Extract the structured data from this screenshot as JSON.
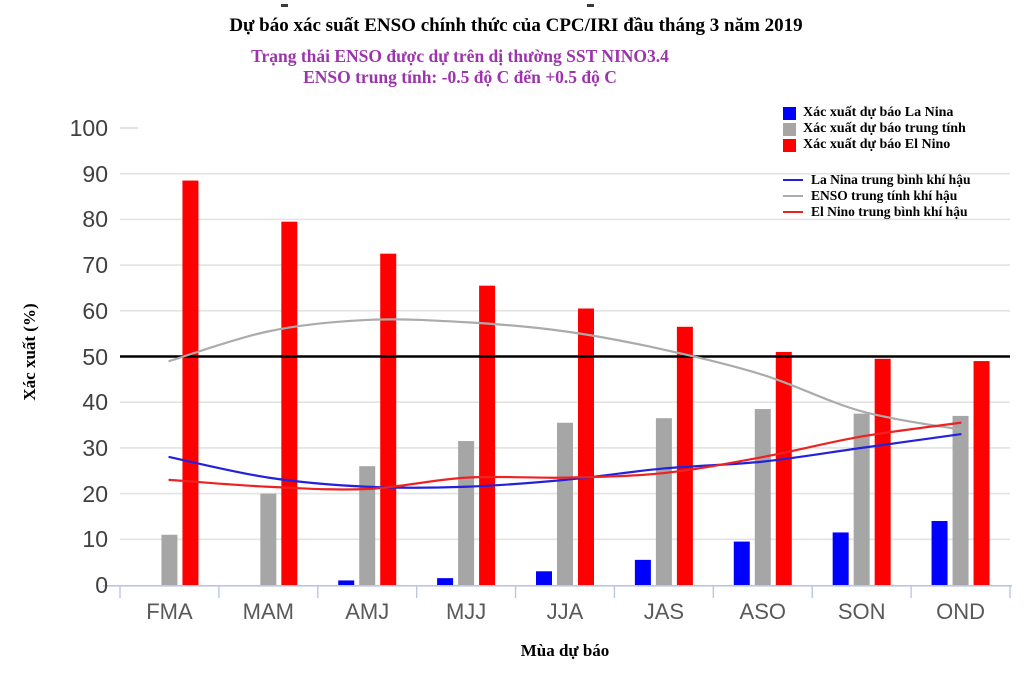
{
  "header": {
    "title": "Dự báo xác suất ENSO chính thức của CPC/IRI đầu tháng 3 năm 2019",
    "subtitle1": "Trạng thái ENSO được dự trên dị thường SST NINO3.4",
    "subtitle2": "ENSO trung tính: -0.5 độ C đến +0.5 độ C"
  },
  "chart_data": {
    "type": "bar",
    "subtype": "combo-bar-line",
    "categories": [
      "FMA",
      "MAM",
      "AMJ",
      "MJJ",
      "JJA",
      "JAS",
      "ASO",
      "SON",
      "OND"
    ],
    "bar_series": [
      {
        "name": "Xác xuất dự báo La Nina",
        "color": "#0000FF",
        "values": [
          0,
          0,
          1,
          1.5,
          3,
          5.5,
          9.5,
          11.5,
          14
        ]
      },
      {
        "name": "Xác xuất dự báo trung tính",
        "color": "#A6A6A6",
        "values": [
          11,
          20,
          26,
          31.5,
          35.5,
          36.5,
          38.5,
          37.5,
          37
        ]
      },
      {
        "name": "Xác xuất dự báo El Nino",
        "color": "#FF0000",
        "values": [
          88.5,
          79.5,
          72.5,
          65.5,
          60.5,
          56.5,
          51,
          49.5,
          49
        ]
      }
    ],
    "line_series": [
      {
        "name": "La Nina trung bình khí hậu",
        "color": "#2222DD",
        "values": [
          28,
          23.5,
          21.5,
          21.5,
          23,
          25.5,
          27,
          30,
          33
        ]
      },
      {
        "name": "ENSO trung tính khí hậu",
        "color": "#ABABAB",
        "values": [
          49,
          55.5,
          58,
          57.5,
          55.5,
          51.5,
          46,
          38,
          34
        ]
      },
      {
        "name": "El Nino trung bình khí hậu",
        "color": "#EE2222",
        "values": [
          23,
          21.5,
          21,
          23.5,
          23.5,
          24.5,
          28,
          32.5,
          35.5
        ]
      }
    ],
    "reference_line": {
      "value": 50,
      "color": "#000000"
    },
    "title": "Dự báo xác suất ENSO chính thức của CPC/IRI đầu tháng 3 năm 2019",
    "xlabel": "Mùa dự báo",
    "ylabel": "Xác xuất  (%)",
    "ylim": [
      0,
      100
    ],
    "ytick_step": 10,
    "grid": true,
    "legend_position": "top-right-inside"
  },
  "colors": {
    "subtitle_purple": "#9C35AC",
    "gridline": "#E3E3E3",
    "axis_frame": "#B9C7E4",
    "ytick_label": "#404040",
    "xtick_label": "#595959",
    "title_black": "#000000"
  }
}
